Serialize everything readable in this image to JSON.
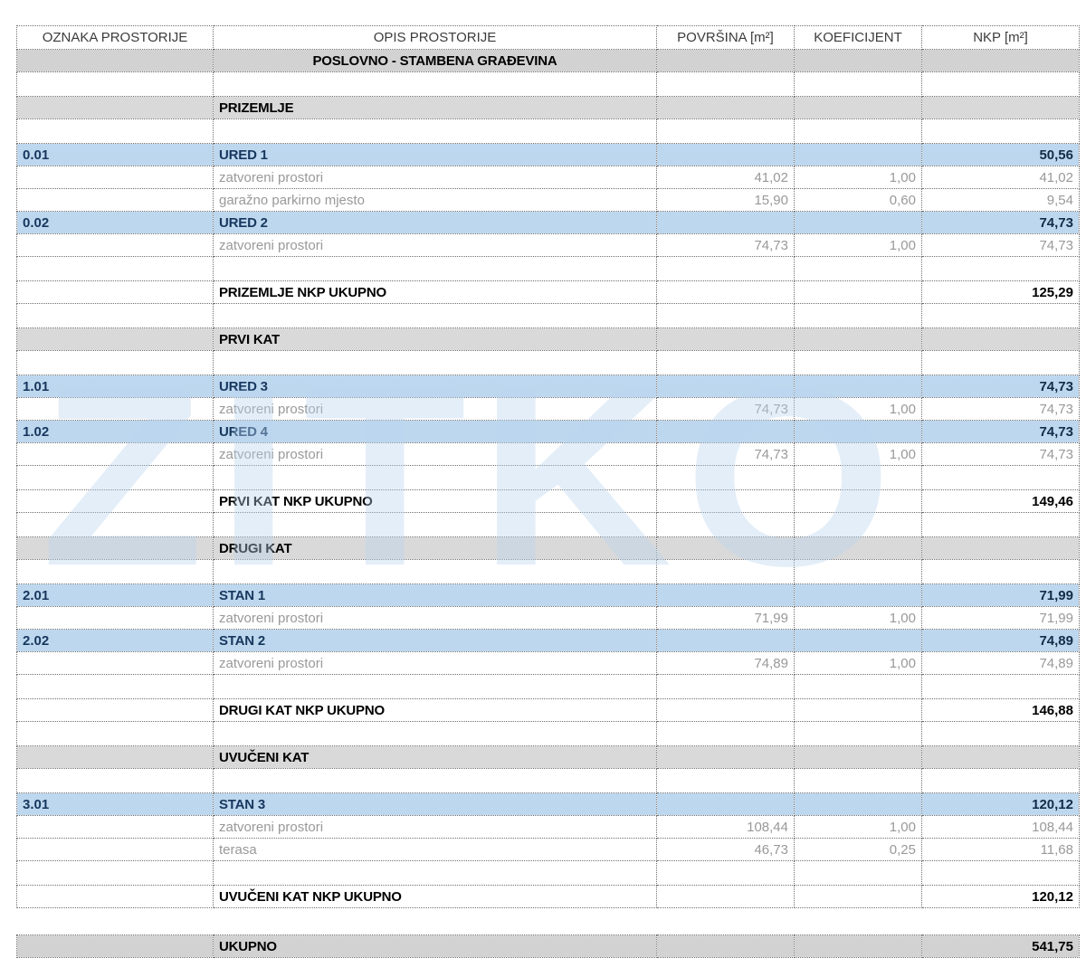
{
  "watermark": {
    "text": "ZITKO"
  },
  "colors": {
    "row_blue": "#bdd7ee",
    "row_gray": "#d9d9d9",
    "item_text_navy": "#17375e",
    "detail_text_gray": "#999999",
    "border": "#6f6f6f"
  },
  "table": {
    "columns": [
      "OZNAKA PROSTORIJE",
      "OPIS PROSTORIJE",
      "POVRŠINA [m²]",
      "KOEFICIJENT",
      "NKP [m²]"
    ],
    "rows": [
      {
        "type": "building",
        "oznaka": "",
        "opis": "POSLOVNO - STAMBENA GRAĐEVINA",
        "povrsina": "",
        "koeficijent": "",
        "nkp": ""
      },
      {
        "type": "empty",
        "oznaka": "",
        "opis": "",
        "povrsina": "",
        "koeficijent": "",
        "nkp": ""
      },
      {
        "type": "section",
        "oznaka": "",
        "opis": "PRIZEMLJE",
        "povrsina": "",
        "koeficijent": "",
        "nkp": ""
      },
      {
        "type": "empty",
        "oznaka": "",
        "opis": "",
        "povrsina": "",
        "koeficijent": "",
        "nkp": ""
      },
      {
        "type": "item",
        "oznaka": "0.01",
        "opis": "URED 1",
        "povrsina": "",
        "koeficijent": "",
        "nkp": "50,56"
      },
      {
        "type": "detail",
        "oznaka": "",
        "opis": "zatvoreni prostori",
        "povrsina": "41,02",
        "koeficijent": "1,00",
        "nkp": "41,02"
      },
      {
        "type": "detail",
        "oznaka": "",
        "opis": "garažno parkirno mjesto",
        "povrsina": "15,90",
        "koeficijent": "0,60",
        "nkp": "9,54"
      },
      {
        "type": "item",
        "oznaka": "0.02",
        "opis": "URED 2",
        "povrsina": "",
        "koeficijent": "",
        "nkp": "74,73"
      },
      {
        "type": "detail",
        "oznaka": "",
        "opis": "zatvoreni prostori",
        "povrsina": "74,73",
        "koeficijent": "1,00",
        "nkp": "74,73"
      },
      {
        "type": "empty",
        "oznaka": "",
        "opis": "",
        "povrsina": "",
        "koeficijent": "",
        "nkp": ""
      },
      {
        "type": "total",
        "oznaka": "",
        "opis": "PRIZEMLJE NKP UKUPNO",
        "povrsina": "",
        "koeficijent": "",
        "nkp": "125,29"
      },
      {
        "type": "empty",
        "oznaka": "",
        "opis": "",
        "povrsina": "",
        "koeficijent": "",
        "nkp": ""
      },
      {
        "type": "section",
        "oznaka": "",
        "opis": "PRVI KAT",
        "povrsina": "",
        "koeficijent": "",
        "nkp": ""
      },
      {
        "type": "empty",
        "oznaka": "",
        "opis": "",
        "povrsina": "",
        "koeficijent": "",
        "nkp": ""
      },
      {
        "type": "item",
        "oznaka": "1.01",
        "opis": "URED 3",
        "povrsina": "",
        "koeficijent": "",
        "nkp": "74,73"
      },
      {
        "type": "detail",
        "oznaka": "",
        "opis": "zatvoreni prostori",
        "povrsina": "74,73",
        "koeficijent": "1,00",
        "nkp": "74,73"
      },
      {
        "type": "item",
        "oznaka": "1.02",
        "opis": "URED 4",
        "povrsina": "",
        "koeficijent": "",
        "nkp": "74,73"
      },
      {
        "type": "detail",
        "oznaka": "",
        "opis": "zatvoreni prostori",
        "povrsina": "74,73",
        "koeficijent": "1,00",
        "nkp": "74,73"
      },
      {
        "type": "empty",
        "oznaka": "",
        "opis": "",
        "povrsina": "",
        "koeficijent": "",
        "nkp": ""
      },
      {
        "type": "total",
        "oznaka": "",
        "opis": "PRVI KAT NKP UKUPNO",
        "povrsina": "",
        "koeficijent": "",
        "nkp": "149,46"
      },
      {
        "type": "empty",
        "oznaka": "",
        "opis": "",
        "povrsina": "",
        "koeficijent": "",
        "nkp": ""
      },
      {
        "type": "section",
        "oznaka": "",
        "opis": "DRUGI KAT",
        "povrsina": "",
        "koeficijent": "",
        "nkp": ""
      },
      {
        "type": "empty",
        "oznaka": "",
        "opis": "",
        "povrsina": "",
        "koeficijent": "",
        "nkp": ""
      },
      {
        "type": "item",
        "oznaka": "2.01",
        "opis": "STAN 1",
        "povrsina": "",
        "koeficijent": "",
        "nkp": "71,99"
      },
      {
        "type": "detail",
        "oznaka": "",
        "opis": "zatvoreni prostori",
        "povrsina": "71,99",
        "koeficijent": "1,00",
        "nkp": "71,99"
      },
      {
        "type": "item",
        "oznaka": "2.02",
        "opis": "STAN 2",
        "povrsina": "",
        "koeficijent": "",
        "nkp": "74,89"
      },
      {
        "type": "detail",
        "oznaka": "",
        "opis": "zatvoreni prostori",
        "povrsina": "74,89",
        "koeficijent": "1,00",
        "nkp": "74,89"
      },
      {
        "type": "empty",
        "oznaka": "",
        "opis": "",
        "povrsina": "",
        "koeficijent": "",
        "nkp": ""
      },
      {
        "type": "total",
        "oznaka": "",
        "opis": "DRUGI KAT NKP UKUPNO",
        "povrsina": "",
        "koeficijent": "",
        "nkp": "146,88"
      },
      {
        "type": "empty",
        "oznaka": "",
        "opis": "",
        "povrsina": "",
        "koeficijent": "",
        "nkp": ""
      },
      {
        "type": "section",
        "oznaka": "",
        "opis": "UVUČENI KAT",
        "povrsina": "",
        "koeficijent": "",
        "nkp": ""
      },
      {
        "type": "empty",
        "oznaka": "",
        "opis": "",
        "povrsina": "",
        "koeficijent": "",
        "nkp": ""
      },
      {
        "type": "item",
        "oznaka": "3.01",
        "opis": "STAN 3",
        "povrsina": "",
        "koeficijent": "",
        "nkp": "120,12"
      },
      {
        "type": "detail",
        "oznaka": "",
        "opis": "zatvoreni prostori",
        "povrsina": "108,44",
        "koeficijent": "1,00",
        "nkp": "108,44"
      },
      {
        "type": "detail",
        "oznaka": "",
        "opis": "terasa",
        "povrsina": "46,73",
        "koeficijent": "0,25",
        "nkp": "11,68"
      },
      {
        "type": "empty",
        "oznaka": "",
        "opis": "",
        "povrsina": "",
        "koeficijent": "",
        "nkp": ""
      },
      {
        "type": "total",
        "oznaka": "",
        "opis": "UVUČENI KAT NKP UKUPNO",
        "povrsina": "",
        "koeficijent": "",
        "nkp": "120,12"
      },
      {
        "type": "spacer",
        "oznaka": "",
        "opis": "",
        "povrsina": "",
        "koeficijent": "",
        "nkp": ""
      },
      {
        "type": "grand",
        "oznaka": "",
        "opis": "UKUPNO",
        "povrsina": "",
        "koeficijent": "",
        "nkp": "541,75"
      }
    ]
  }
}
